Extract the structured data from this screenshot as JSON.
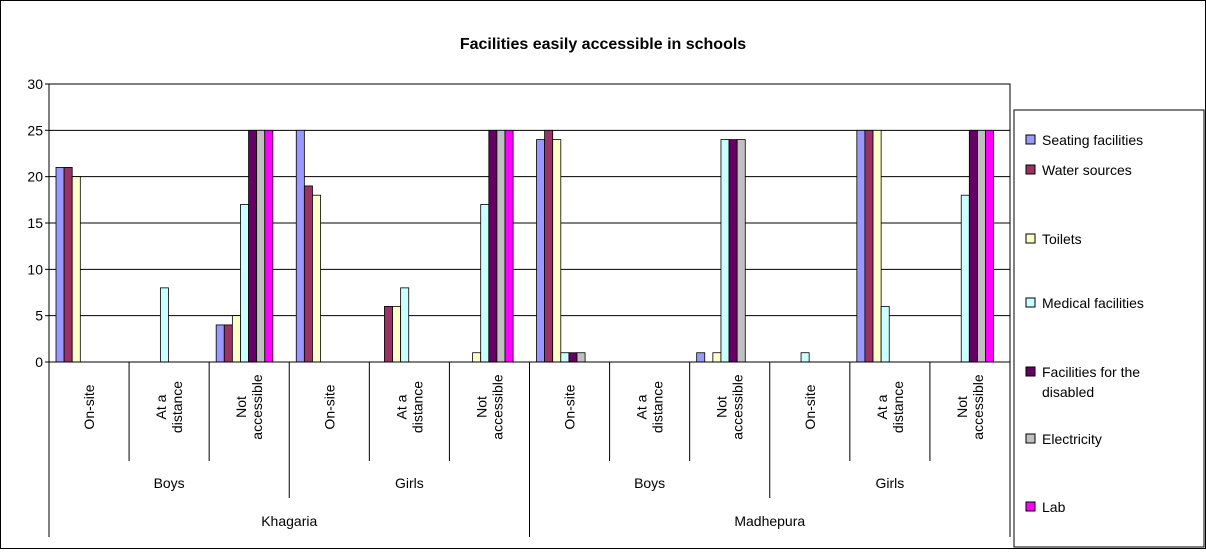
{
  "chart_data": {
    "type": "bar",
    "title": "Facilities easily accessible in schools",
    "xlabel": "",
    "ylabel": "",
    "ylim": [
      0,
      30
    ],
    "yticks": [
      "0",
      "5",
      "10",
      "15",
      "20",
      "25",
      "30"
    ],
    "grid": true,
    "legend_position": "right",
    "districts": [
      "Khagaria",
      "Madhepura"
    ],
    "genders": [
      "Boys",
      "Girls",
      "Boys",
      "Girls"
    ],
    "categories": [
      "On-site",
      "At a distance",
      "Not accessible",
      "On-site",
      "At a distance",
      "Not accessible",
      "On-site",
      "At a distance",
      "Not accessible",
      "On-site",
      "At a distance",
      "Not accessible"
    ],
    "category_lines": [
      [
        "On-site"
      ],
      [
        "At a",
        "distance"
      ],
      [
        "Not",
        "accessible"
      ],
      [
        "On-site"
      ],
      [
        "At a",
        "distance"
      ],
      [
        "Not",
        "accessible"
      ],
      [
        "On-site"
      ],
      [
        "At a",
        "distance"
      ],
      [
        "Not",
        "accessible"
      ],
      [
        "On-site"
      ],
      [
        "At a",
        "distance"
      ],
      [
        "Not",
        "accessible"
      ]
    ],
    "series": [
      {
        "name": "Seating facilities",
        "color": "#9999ff",
        "values": [
          21,
          0,
          4,
          25,
          0,
          0,
          24,
          0,
          1,
          0,
          25,
          0
        ]
      },
      {
        "name": "Water sources",
        "color": "#993366",
        "values": [
          21,
          0,
          4,
          19,
          6,
          0,
          25,
          0,
          0,
          0,
          25,
          0
        ]
      },
      {
        "name": "Toilets",
        "color": "#ffffcc",
        "values": [
          20,
          0,
          5,
          18,
          6,
          1,
          24,
          0,
          1,
          0,
          25,
          0
        ]
      },
      {
        "name": "Medical facilities",
        "color": "#ccffff",
        "values": [
          0,
          8,
          17,
          0,
          8,
          17,
          1,
          0,
          24,
          1,
          6,
          18
        ]
      },
      {
        "name": "Facilities for the disabled",
        "color": "#660066",
        "values": [
          0,
          0,
          25,
          0,
          0,
          25,
          1,
          0,
          24,
          0,
          0,
          25
        ]
      },
      {
        "name": "Electricity",
        "color": "#c0c0c0",
        "values": [
          0,
          0,
          25,
          0,
          0,
          25,
          1,
          0,
          24,
          0,
          0,
          25
        ]
      },
      {
        "name": "Lab",
        "color": "#ff00ff",
        "values": [
          0,
          0,
          25,
          0,
          0,
          25,
          0,
          0,
          0,
          0,
          0,
          25
        ]
      }
    ],
    "legend_lines": [
      [
        "Seating facilities"
      ],
      [
        "Water sources"
      ],
      [
        "Toilets"
      ],
      [
        "Medical facilities"
      ],
      [
        "Facilities for the",
        "disabled"
      ],
      [
        "Electricity"
      ],
      [
        "Lab"
      ]
    ]
  }
}
